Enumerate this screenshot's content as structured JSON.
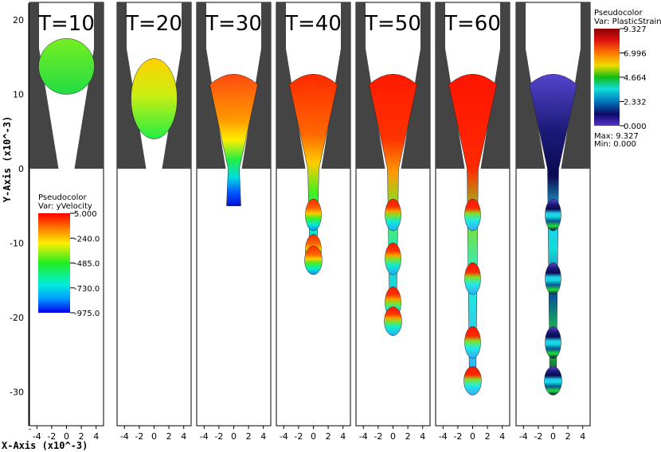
{
  "chart_data": {
    "type": "image-panels",
    "panels": [
      {
        "title": "T=10",
        "shape": "droplet-in-nozzle",
        "tip_y": 10.0,
        "top_y": 17.5,
        "colors": [
          "#33dd33",
          "#66ee22"
        ]
      },
      {
        "title": "T=20",
        "shape": "droplet-in-nozzle",
        "tip_y": 4.0,
        "top_y": 14.8,
        "colors": [
          "#ffd800",
          "#22ee44"
        ]
      },
      {
        "title": "T=30",
        "shape": "jet",
        "tip_y": -5.0,
        "colors": [
          "#ff5a10",
          "#0022ee"
        ]
      },
      {
        "title": "T=40",
        "shape": "jet",
        "tip_y": -13.8,
        "colors": [
          "#ff3300",
          "#1199ff"
        ]
      },
      {
        "title": "T=50",
        "shape": "jet",
        "tip_y": -22.0,
        "colors": [
          "#ff2200",
          "#22bbff"
        ]
      },
      {
        "title": "T=60",
        "shape": "jet",
        "tip_y": -30.0,
        "colors": [
          "#ff1a00",
          "#33aaff"
        ]
      },
      {
        "title": "",
        "shape": "jet-strain",
        "tip_y": -30.0,
        "colors": [
          "#4433cc",
          "#22eedd"
        ]
      }
    ],
    "xaxis": {
      "label": "X-Axis (x10^-3)",
      "ticks": [
        "-4",
        "-2",
        "0",
        "2",
        "4"
      ],
      "range": [
        -5,
        5
      ]
    },
    "yaxis": {
      "label": "Y-Axis (x10^-3)",
      "ticks": [
        "20",
        "10",
        "0",
        "-10",
        "-20",
        "-30"
      ],
      "range": [
        -36,
        23
      ]
    },
    "legends": [
      {
        "title": "Pseudocolor",
        "var": "Var: yVelocity",
        "labels": [
          "5.000",
          "-240.0",
          "-485.0",
          "-730.0",
          "-975.0"
        ]
      },
      {
        "title": "Pseudocolor",
        "var": "Var: PlasticStrain",
        "labels": [
          "9.327",
          "6.996",
          "4.664",
          "2.332",
          "0.000"
        ],
        "max": "Max: 9.327",
        "min": "Min: 0.000"
      }
    ]
  }
}
